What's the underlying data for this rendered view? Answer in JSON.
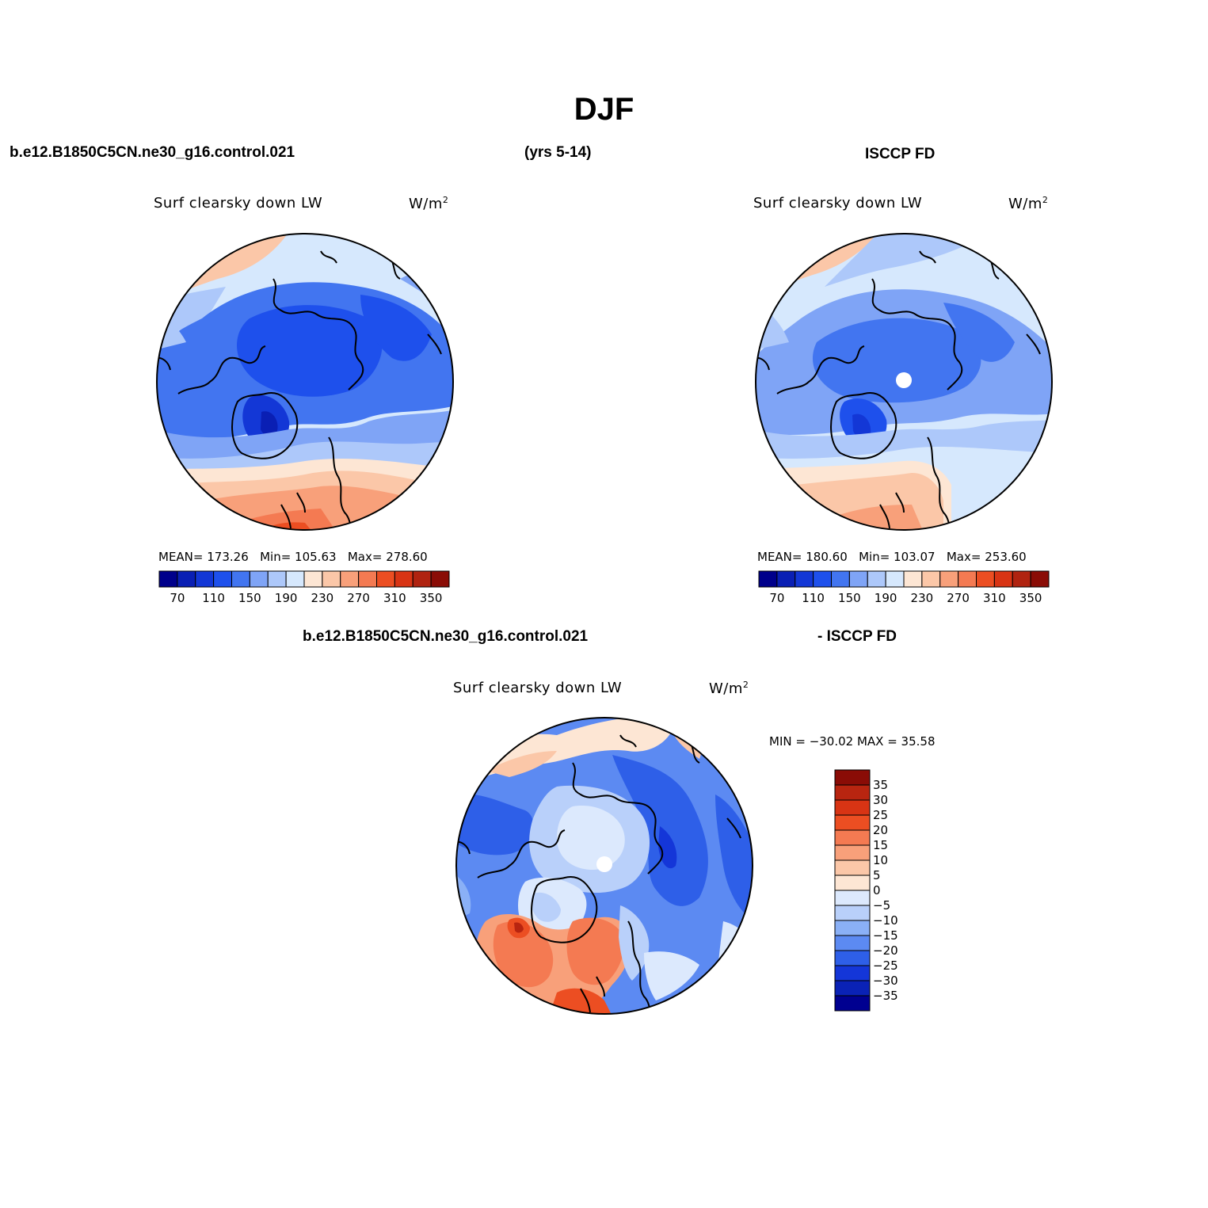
{
  "title": "DJF",
  "header": {
    "left": "b.e12.B1850C5CN.ne30_g16.control.021",
    "center": "(yrs 5-14)",
    "right": "ISCCP FD",
    "diff_left": "b.e12.B1850C5CN.ne30_g16.control.021",
    "diff_right": "- ISCCP FD"
  },
  "panels": {
    "model": {
      "variable": "Surf clearsky down LW",
      "units": "W/m",
      "units_sup": "2",
      "mean_label": "MEAN=",
      "mean": "173.26",
      "min_label": "Min=",
      "min": "105.63",
      "max_label": "Max=",
      "max": "278.60"
    },
    "obs": {
      "variable": "Surf clearsky down LW",
      "units": "W/m",
      "units_sup": "2",
      "mean_label": "MEAN=",
      "mean": "180.60",
      "min_label": "Min=",
      "min": "103.07",
      "max_label": "Max=",
      "max": "253.60"
    },
    "diff": {
      "variable": "Surf clearsky down LW",
      "units": "W/m",
      "units_sup": "2",
      "minmax_text": "MIN = −30.02 MAX =  35.58"
    }
  },
  "colorbars": {
    "horizontal": {
      "colors": [
        "#00008b",
        "#0a1fb4",
        "#1337d6",
        "#1e50ec",
        "#4275f0",
        "#7fa4f6",
        "#adc8fa",
        "#d6e8fd",
        "#fde6d4",
        "#fbc7a8",
        "#f8a07a",
        "#f47a52",
        "#ec4e22",
        "#d83414",
        "#b02310",
        "#8a0c06"
      ],
      "labels": [
        "70",
        "110",
        "150",
        "190",
        "230",
        "270",
        "310",
        "350"
      ]
    },
    "vertical": {
      "colors": [
        "#8a0c06",
        "#b82510",
        "#d83414",
        "#ec4e22",
        "#f47a52",
        "#f8a07a",
        "#fbc7a8",
        "#fde6d4",
        "#dce9fd",
        "#b9d0fa",
        "#8ab0f6",
        "#5c8af2",
        "#2e5fe8",
        "#1436d8",
        "#0a22b6",
        "#000090"
      ],
      "labels": [
        "35",
        "30",
        "25",
        "20",
        "15",
        "10",
        "5",
        "0",
        "−5",
        "−10",
        "−15",
        "−20",
        "−25",
        "−30",
        "−35"
      ]
    }
  },
  "map_features": {
    "pole_marker_color": "#ffffff",
    "coastline_color": "#000000"
  }
}
